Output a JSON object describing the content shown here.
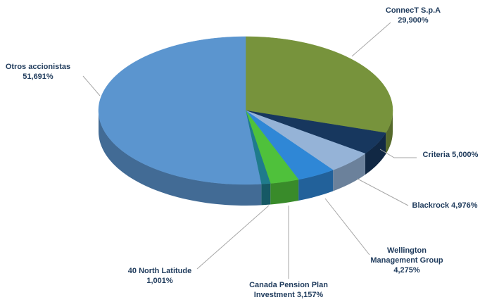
{
  "chart_data": {
    "type": "pie",
    "categories": [
      "ConnecT S.p.A",
      "Criteria",
      "Blackrock",
      "Wellington Management Group",
      "Canada Pension Plan Investment",
      "40 North Latitude",
      "Otros accionistas"
    ],
    "values": [
      29.9,
      5.0,
      4.976,
      4.275,
      3.157,
      1.001,
      51.691
    ],
    "value_labels": [
      "29,900%",
      "5,000%",
      "4,976%",
      "4,275%",
      "3,157%",
      "1,001%",
      "51,691%"
    ],
    "colors": [
      "#77933c",
      "#17375e",
      "#95b3d7",
      "#2f87d6",
      "#4fc13b",
      "#1f7b8c",
      "#5b95cf"
    ]
  }
}
